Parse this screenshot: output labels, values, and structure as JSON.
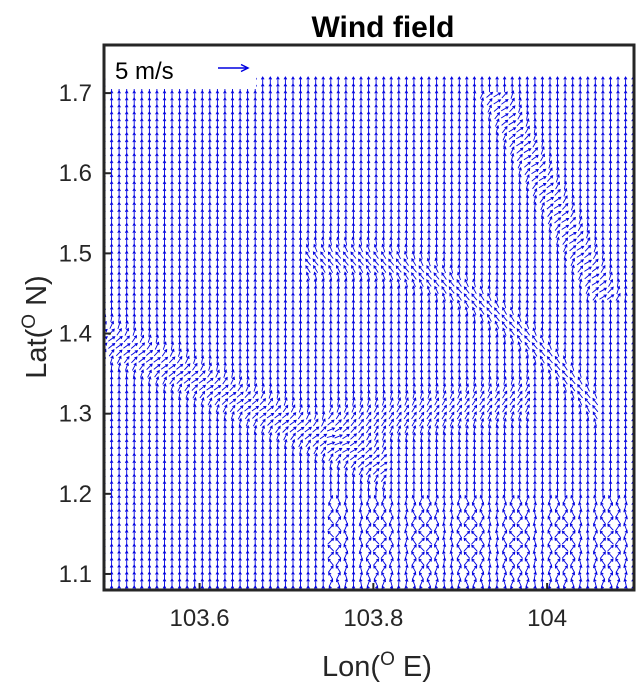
{
  "chart_data": {
    "type": "quiver",
    "title": "Wind field",
    "xlabel_pre": "Lon(",
    "xlabel_sup": "O",
    "xlabel_post": " E)",
    "ylabel_pre": "Lat(",
    "ylabel_sup": "O",
    "ylabel_post": " N)",
    "xlim": [
      103.49,
      104.1
    ],
    "ylim": [
      1.08,
      1.76
    ],
    "xticks": [
      103.6,
      103.8,
      104.0
    ],
    "xtick_labels": [
      "103.6",
      "103.8",
      "104"
    ],
    "yticks": [
      1.1,
      1.2,
      1.3,
      1.4,
      1.5,
      1.6,
      1.7
    ],
    "ytick_labels": [
      "1.1",
      "1.2",
      "1.3",
      "1.4",
      "1.5",
      "1.6",
      "1.7"
    ],
    "grid": false,
    "data_extent": {
      "lon": [
        103.49,
        104.1
      ],
      "lat": [
        1.08,
        1.72
      ]
    },
    "grid_spacing": {
      "lon": 0.0087,
      "lat": 0.0087
    },
    "dominant_direction": "south to north",
    "arrow_color": "#0000e0",
    "reference_vector": {
      "label": "5 m/s",
      "speed": 5,
      "unit": "m/s",
      "direction": "east"
    },
    "features": [
      {
        "lon": 104.01,
        "lat": 1.56,
        "description": "rotated vectors along a NE ridge"
      },
      {
        "lon": 103.8,
        "lat": 1.47,
        "description": "curved band of turned vectors"
      },
      {
        "lon": 103.62,
        "lat": 1.32,
        "description": "diagonal band of turned vectors"
      },
      {
        "lon": 103.9,
        "lat": 1.15,
        "description": "turbulent southern region"
      }
    ]
  }
}
